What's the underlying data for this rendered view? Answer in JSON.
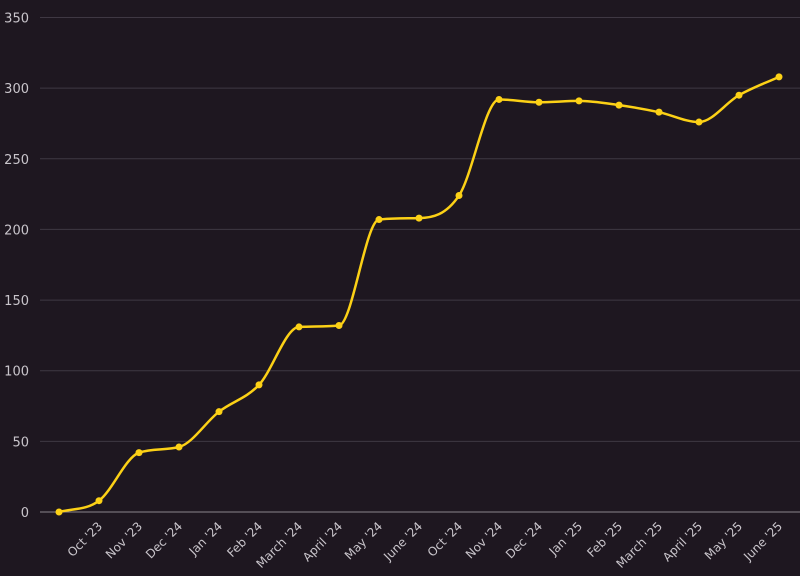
{
  "chart_data": {
    "type": "line",
    "categories": [
      "",
      "Oct '23",
      "Nov '23",
      "Dec '24",
      "Jan '24",
      "Feb '24",
      "March '24",
      "April '24",
      "May '24",
      "June '24",
      "Oct '24",
      "Nov '24",
      "Dec '24",
      "Jan '25",
      "Feb '25",
      "March '25",
      "April '25",
      "May '25",
      "June '25"
    ],
    "series": [
      {
        "values": [
          0,
          8,
          42,
          46,
          71,
          90,
          131,
          132,
          207,
          208,
          224,
          292,
          290,
          291,
          288,
          283,
          276,
          295,
          308
        ],
        "color": "#fcd116"
      }
    ],
    "yticks": [
      0,
      50,
      100,
      150,
      200,
      250,
      300,
      350
    ],
    "ylim": [
      0,
      350
    ],
    "grid": true,
    "legend": "none"
  }
}
